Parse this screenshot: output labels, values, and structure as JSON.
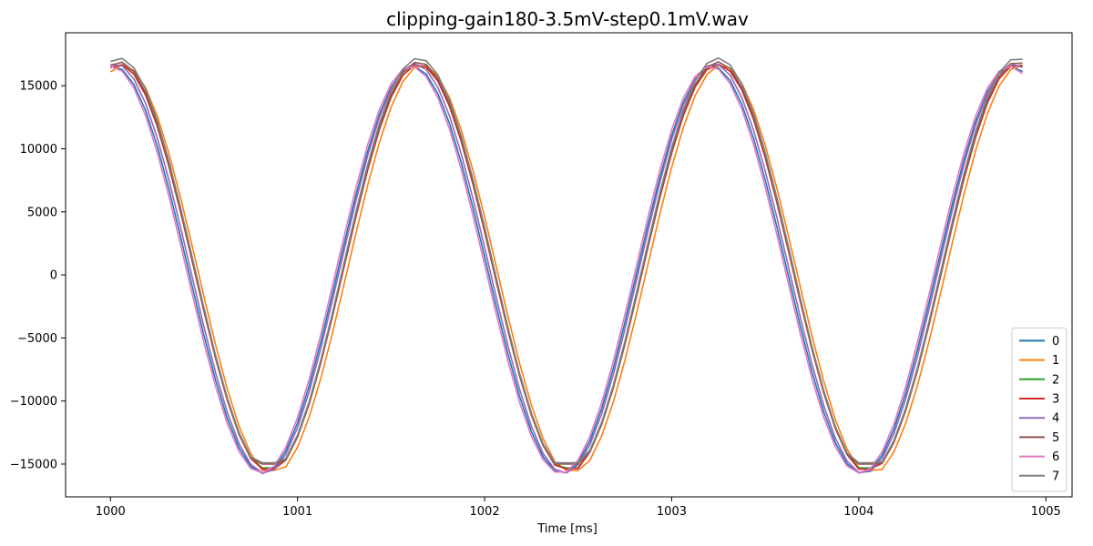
{
  "chart_data": {
    "type": "line",
    "title": "clipping-gain180-3.5mV-step0.1mV.wav",
    "xlabel": "Time [ms]",
    "ylabel": "",
    "xlim": [
      999.76,
      1005.14
    ],
    "ylim": [
      -17600,
      19200
    ],
    "xticks": [
      1000,
      1001,
      1002,
      1003,
      1004,
      1005
    ],
    "yticks": [
      -15000,
      -10000,
      -5000,
      0,
      5000,
      10000,
      15000
    ],
    "grid": false,
    "legend_position": "lower right",
    "x_range": [
      1000.0,
      1004.9
    ],
    "sample_step_ms": 0.0625,
    "period_ms": 1.6,
    "series": [
      {
        "name": "0",
        "color": "#1f77b4",
        "amplitude": 16150,
        "offset": 400,
        "phase_ms": 0.08,
        "pos_clip": 16700,
        "neg_clip": -15800
      },
      {
        "name": "1",
        "color": "#ff7f0e",
        "amplitude": 16250,
        "offset": 400,
        "phase_ms": 0.13,
        "pos_clip": 17000,
        "neg_clip": -15500
      },
      {
        "name": "2",
        "color": "#2ca02c",
        "amplitude": 16200,
        "offset": 500,
        "phase_ms": 0.11,
        "pos_clip": 17200,
        "neg_clip": -15300
      },
      {
        "name": "3",
        "color": "#d62728",
        "amplitude": 16200,
        "offset": 500,
        "phase_ms": 0.11,
        "pos_clip": 17100,
        "neg_clip": -15400
      },
      {
        "name": "4",
        "color": "#9467bd",
        "amplitude": 16250,
        "offset": 500,
        "phase_ms": 0.09,
        "pos_clip": 16800,
        "neg_clip": -15700
      },
      {
        "name": "5",
        "color": "#8c564b",
        "amplitude": 16300,
        "offset": 600,
        "phase_ms": 0.11,
        "pos_clip": 17400,
        "neg_clip": -15000
      },
      {
        "name": "6",
        "color": "#e377c2",
        "amplitude": 16150,
        "offset": 400,
        "phase_ms": 0.07,
        "pos_clip": 16600,
        "neg_clip": -15700
      },
      {
        "name": "7",
        "color": "#7f7f7f",
        "amplitude": 16400,
        "offset": 800,
        "phase_ms": 0.11,
        "pos_clip": 17500,
        "neg_clip": -14900
      }
    ]
  }
}
